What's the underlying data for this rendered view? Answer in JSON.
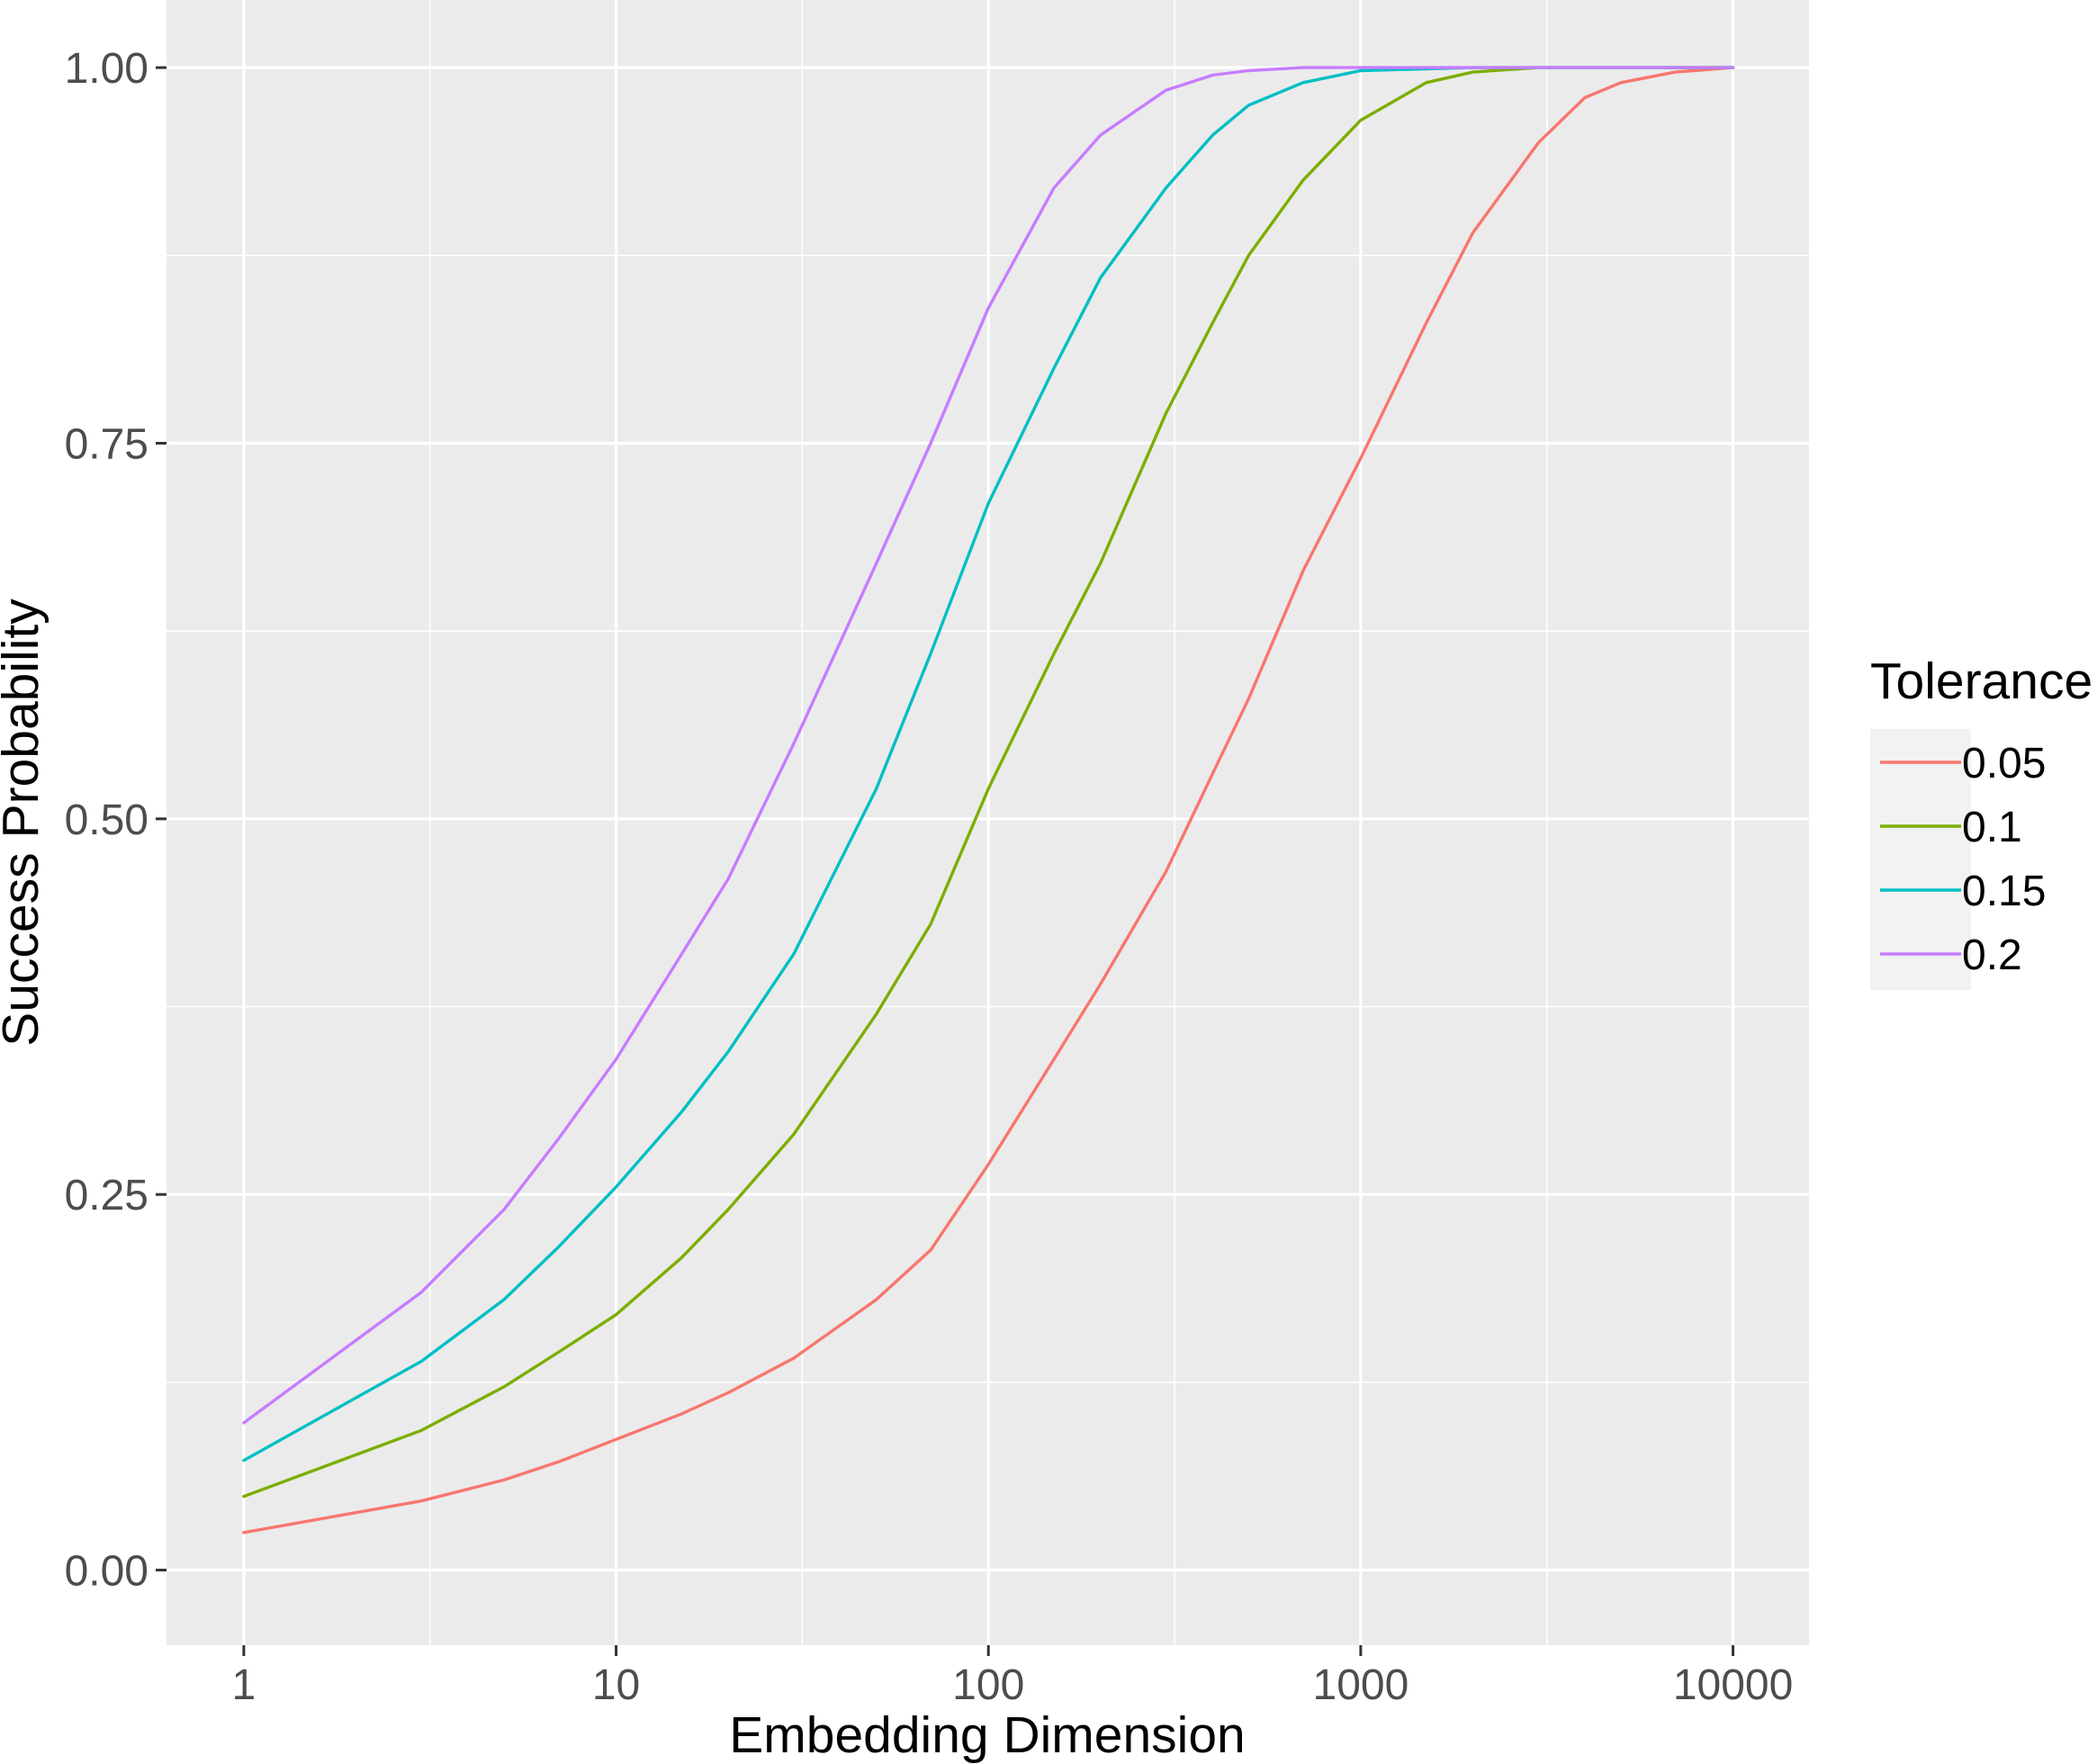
{
  "chart_data": {
    "type": "line",
    "xlabel": "Embedding Dimension",
    "ylabel": "Success Probability",
    "x_scale": "log10",
    "xlim": [
      0.62,
      16000
    ],
    "ylim": [
      -0.05,
      1.045
    ],
    "x_ticks": [
      1,
      10,
      100,
      1000,
      10000
    ],
    "x_tick_labels": [
      "1",
      "10",
      "100",
      "1000",
      "10000"
    ],
    "y_ticks": [
      0,
      0.25,
      0.5,
      0.75,
      1
    ],
    "y_tick_labels": [
      "0.00",
      "0.25",
      "0.50",
      "0.75",
      "1.00"
    ],
    "grid": true,
    "panel_background": "#EBEBEB",
    "legend": {
      "title": "Tolerance",
      "position": "right"
    },
    "series": [
      {
        "name": "0.05",
        "color": "#F8766D",
        "points": [
          [
            1,
            0.025
          ],
          [
            3,
            0.046
          ],
          [
            5,
            0.06
          ],
          [
            7,
            0.072
          ],
          [
            10,
            0.087
          ],
          [
            15,
            0.104
          ],
          [
            20,
            0.118
          ],
          [
            30,
            0.141
          ],
          [
            50,
            0.18
          ],
          [
            70,
            0.213
          ],
          [
            100,
            0.27
          ],
          [
            150,
            0.34
          ],
          [
            200,
            0.39
          ],
          [
            300,
            0.465
          ],
          [
            400,
            0.53
          ],
          [
            500,
            0.58
          ],
          [
            700,
            0.665
          ],
          [
            1000,
            0.74
          ],
          [
            1500,
            0.83
          ],
          [
            2000,
            0.89
          ],
          [
            3000,
            0.95
          ],
          [
            4000,
            0.98
          ],
          [
            5000,
            0.99
          ],
          [
            7000,
            0.997
          ],
          [
            10000,
            1.0
          ]
        ]
      },
      {
        "name": "0.1",
        "color": "#7CAE00",
        "points": [
          [
            1,
            0.049
          ],
          [
            3,
            0.093
          ],
          [
            5,
            0.122
          ],
          [
            7,
            0.145
          ],
          [
            10,
            0.17
          ],
          [
            15,
            0.208
          ],
          [
            20,
            0.24
          ],
          [
            30,
            0.29
          ],
          [
            50,
            0.37
          ],
          [
            70,
            0.43
          ],
          [
            100,
            0.52
          ],
          [
            150,
            0.61
          ],
          [
            200,
            0.67
          ],
          [
            300,
            0.77
          ],
          [
            400,
            0.83
          ],
          [
            500,
            0.875
          ],
          [
            700,
            0.925
          ],
          [
            1000,
            0.965
          ],
          [
            1500,
            0.99
          ],
          [
            2000,
            0.997
          ],
          [
            3000,
            1.0
          ],
          [
            10000,
            1.0
          ]
        ]
      },
      {
        "name": "0.15",
        "color": "#00BFC4",
        "points": [
          [
            1,
            0.073
          ],
          [
            3,
            0.139
          ],
          [
            5,
            0.18
          ],
          [
            7,
            0.215
          ],
          [
            10,
            0.255
          ],
          [
            15,
            0.305
          ],
          [
            20,
            0.345
          ],
          [
            30,
            0.41
          ],
          [
            50,
            0.52
          ],
          [
            70,
            0.61
          ],
          [
            100,
            0.71
          ],
          [
            150,
            0.8
          ],
          [
            200,
            0.86
          ],
          [
            300,
            0.92
          ],
          [
            400,
            0.955
          ],
          [
            500,
            0.975
          ],
          [
            700,
            0.99
          ],
          [
            1000,
            0.998
          ],
          [
            2000,
            1.0
          ],
          [
            10000,
            1.0
          ]
        ]
      },
      {
        "name": "0.2",
        "color": "#C77CFF",
        "points": [
          [
            1,
            0.098
          ],
          [
            3,
            0.185
          ],
          [
            5,
            0.24
          ],
          [
            7,
            0.287
          ],
          [
            10,
            0.34
          ],
          [
            15,
            0.41
          ],
          [
            20,
            0.46
          ],
          [
            30,
            0.55
          ],
          [
            50,
            0.67
          ],
          [
            70,
            0.75
          ],
          [
            100,
            0.84
          ],
          [
            150,
            0.92
          ],
          [
            200,
            0.955
          ],
          [
            300,
            0.985
          ],
          [
            400,
            0.995
          ],
          [
            500,
            0.998
          ],
          [
            700,
            1.0
          ],
          [
            10000,
            1.0
          ]
        ]
      }
    ]
  }
}
